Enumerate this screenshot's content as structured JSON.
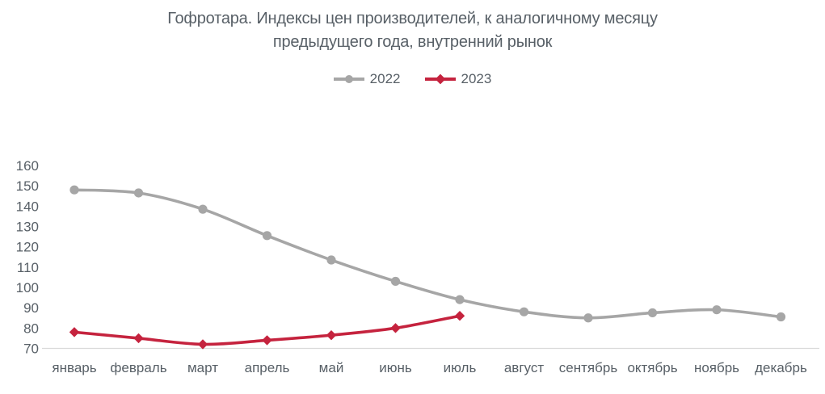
{
  "title": {
    "line1": "Гофротара. Индексы цен производителей, к аналогичному месяцу",
    "line2": "предыдущего года, внутренний рынок"
  },
  "chart_data": {
    "type": "line",
    "title": "Гофротара. Индексы цен производителей, к аналогичному месяцу предыдущего года, внутренний рынок",
    "categories": [
      "январь",
      "февраль",
      "март",
      "апрель",
      "май",
      "июнь",
      "июль",
      "август",
      "сентябрь",
      "октябрь",
      "ноябрь",
      "декабрь"
    ],
    "series": [
      {
        "name": "2022",
        "color": "#A6A6A6",
        "marker": "circle",
        "values": [
          148,
          146.5,
          138.5,
          125.5,
          113.5,
          103,
          94,
          88,
          85,
          87.5,
          89,
          85.5
        ]
      },
      {
        "name": "2023",
        "color": "#C5233E",
        "marker": "diamond",
        "values": [
          78,
          75,
          72,
          74,
          76.5,
          80,
          86
        ]
      }
    ],
    "xlabel": "",
    "ylabel": "",
    "ylim": [
      70,
      160
    ],
    "ytick_step": 10,
    "yticks": [
      70,
      80,
      90,
      100,
      110,
      120,
      130,
      140,
      150,
      160
    ],
    "grid": false,
    "smooth": true,
    "legend_position": "top"
  },
  "axis": {
    "line_color": "#D9D9D9",
    "label_color": "#586067"
  }
}
